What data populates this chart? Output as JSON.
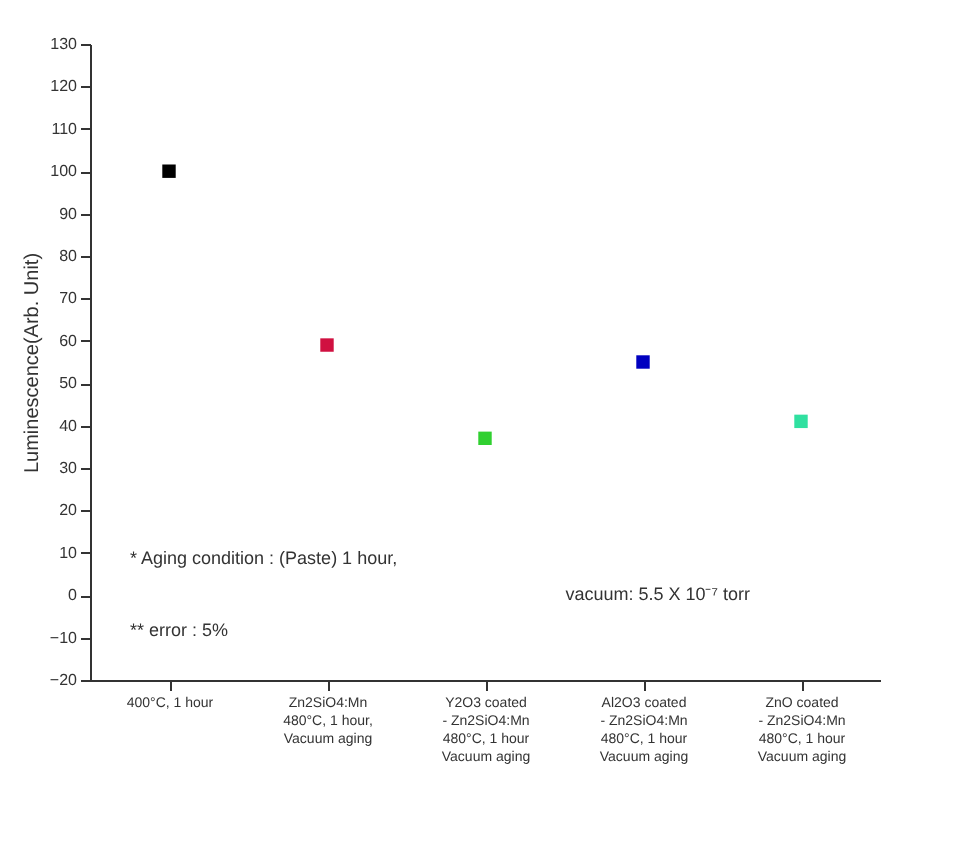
{
  "chart_data": {
    "type": "scatter",
    "ylabel": "Luminescence(Arb. Unit)",
    "categories": [
      "400°C, 1 hour",
      "Zn2SiO4:Mn\n480°C, 1 hour,\nVacuum aging",
      "Y2O3 coated\n- Zn2SiO4:Mn\n480°C, 1 hour\nVacuum aging",
      "Al2O3 coated\n- Zn2SiO4:Mn\n480°C, 1 hour\nVacuum aging",
      "ZnO coated\n- Zn2SiO4:Mn\n480°C, 1 hour\nVacuum aging"
    ],
    "values": [
      100,
      59,
      37,
      55,
      41
    ],
    "colors": [
      "#000000",
      "#d01040",
      "#30d030",
      "#0000c0",
      "#30e0a0"
    ],
    "ylim": [
      -20,
      130
    ],
    "yticks": [
      -20,
      -10,
      0,
      10,
      20,
      30,
      40,
      50,
      60,
      70,
      80,
      90,
      100,
      110,
      120,
      130
    ],
    "marker": "square",
    "grid": false,
    "legend": false,
    "annotations": [
      "* Aging condition : (Paste) 1 hour,",
      "vacuum: 5.5 X 10⁻⁷ torr",
      "** error : 5%"
    ]
  }
}
